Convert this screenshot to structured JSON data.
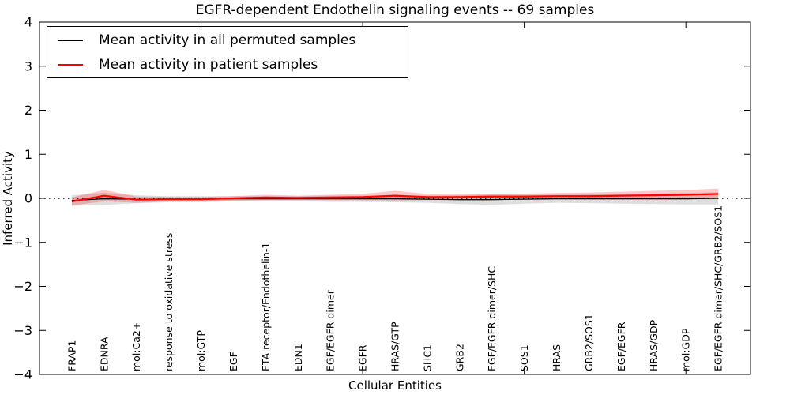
{
  "figure": {
    "title": "EGFR-dependent Endothelin signaling events -- 69 samples",
    "xlabel": "Cellular Entities",
    "ylabel": "Inferred Activity"
  },
  "legend": {
    "position": "upper left",
    "items": [
      {
        "label": "Mean activity in all permuted samples",
        "color": "#000000"
      },
      {
        "label": "Mean activity in patient samples",
        "color": "#ff0000"
      }
    ]
  },
  "chart_data": {
    "type": "line",
    "title": "EGFR-dependent Endothelin signaling events -- 69 samples",
    "xlabel": "Cellular Entities",
    "ylabel": "Inferred Activity",
    "ylim": [
      -4,
      4
    ],
    "yticks": [
      4,
      3,
      2,
      1,
      0,
      -1,
      -2,
      -3,
      -4
    ],
    "ytick_labels": [
      "4",
      "3",
      "2",
      "1",
      "0",
      "−1",
      "−2",
      "−3",
      "−4"
    ],
    "xtick_major_indices": [
      4,
      9,
      14,
      19
    ],
    "grid": false,
    "legend_position": "upper left",
    "zero_line": {
      "y": 0,
      "style": "dotted",
      "color": "#000000"
    },
    "categories": [
      "FRAP1",
      "EDNRA",
      "mol:Ca2+",
      "response to oxidative stress",
      "mol:GTP",
      "EGF",
      "ETA receptor/Endothelin-1",
      "EDN1",
      "EGF/EGFR dimer",
      "EGFR",
      "HRAS/GTP",
      "SHC1",
      "GRB2",
      "EGF/EGFR dimer/SHC",
      "SOS1",
      "HRAS",
      "GRB2/SOS1",
      "EGF/EGFR",
      "HRAS/GDP",
      "mol:GDP",
      "EGF/EGFR dimer/SHC/GRB2/SOS1"
    ],
    "series": [
      {
        "name": "Mean activity in all permuted samples",
        "color": "#000000",
        "line_width": 1.3,
        "band_color": "rgba(0,0,0,0.13)",
        "values": [
          -0.05,
          -0.01,
          -0.02,
          -0.02,
          -0.02,
          -0.01,
          -0.01,
          -0.01,
          -0.01,
          -0.01,
          -0.01,
          -0.02,
          -0.03,
          -0.03,
          -0.02,
          -0.01,
          -0.01,
          -0.01,
          -0.01,
          -0.01,
          0.0
        ],
        "band_halfwidth": [
          0.12,
          0.14,
          0.09,
          0.07,
          0.07,
          0.06,
          0.06,
          0.06,
          0.07,
          0.07,
          0.08,
          0.08,
          0.1,
          0.12,
          0.1,
          0.09,
          0.1,
          0.11,
          0.12,
          0.13,
          0.14
        ]
      },
      {
        "name": "Mean activity in patient samples",
        "color": "#ff0000",
        "line_width": 2.2,
        "band_color": "rgba(255,0,0,0.22)",
        "values": [
          -0.07,
          0.06,
          -0.03,
          -0.02,
          -0.02,
          0.0,
          0.02,
          0.01,
          0.02,
          0.03,
          0.06,
          0.03,
          0.03,
          0.04,
          0.04,
          0.05,
          0.05,
          0.06,
          0.07,
          0.08,
          0.1
        ],
        "band_halfwidth": [
          0.09,
          0.13,
          0.07,
          0.05,
          0.05,
          0.05,
          0.06,
          0.05,
          0.06,
          0.07,
          0.11,
          0.07,
          0.06,
          0.07,
          0.07,
          0.07,
          0.08,
          0.09,
          0.1,
          0.11,
          0.12
        ]
      }
    ]
  }
}
